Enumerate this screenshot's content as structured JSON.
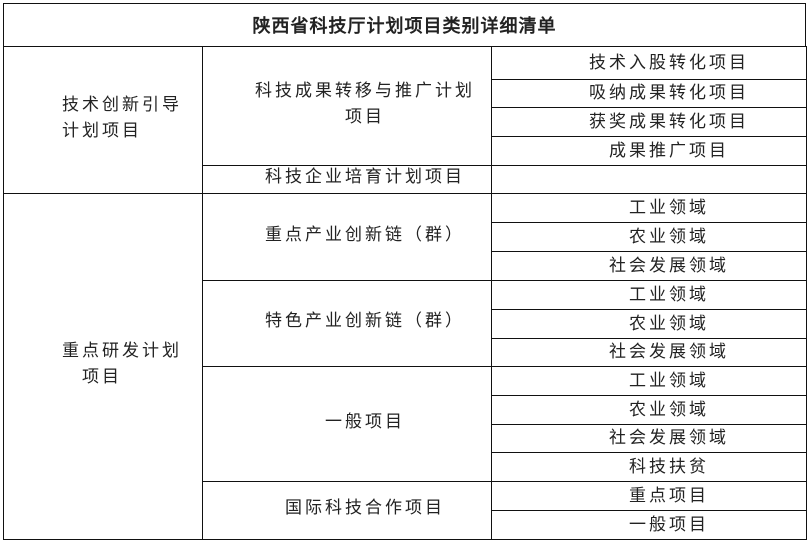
{
  "title": "陕西省科技厅计划项目类别详细清单",
  "groups": [
    {
      "label_lines": [
        "技术创新引导",
        "计划项目"
      ],
      "subs": [
        {
          "label_lines": [
            "科技成果转移与推广计划",
            "项目"
          ],
          "items": [
            "技术入股转化项目",
            "吸纳成果转化项目",
            "获奖成果转化项目",
            "成果推广项目"
          ]
        },
        {
          "label_lines": [
            "科技企业培育计划项目"
          ],
          "items": []
        }
      ]
    },
    {
      "label_lines": [
        "重点研发计划",
        "项目"
      ],
      "subs": [
        {
          "label_lines": [
            "重点产业创新链（群）"
          ],
          "items": [
            "工业领域",
            "农业领域",
            "社会发展领域"
          ]
        },
        {
          "label_lines": [
            "特色产业创新链（群）"
          ],
          "items": [
            "工业领域",
            "农业领域",
            "社会发展领域"
          ]
        },
        {
          "label_lines": [
            "一般项目"
          ],
          "items": [
            "工业领域",
            "农业领域",
            "社会发展领域",
            "科技扶贫"
          ]
        },
        {
          "label_lines": [
            "国际科技合作项目"
          ],
          "items": [
            "重点项目",
            "一般项目"
          ]
        }
      ]
    }
  ]
}
